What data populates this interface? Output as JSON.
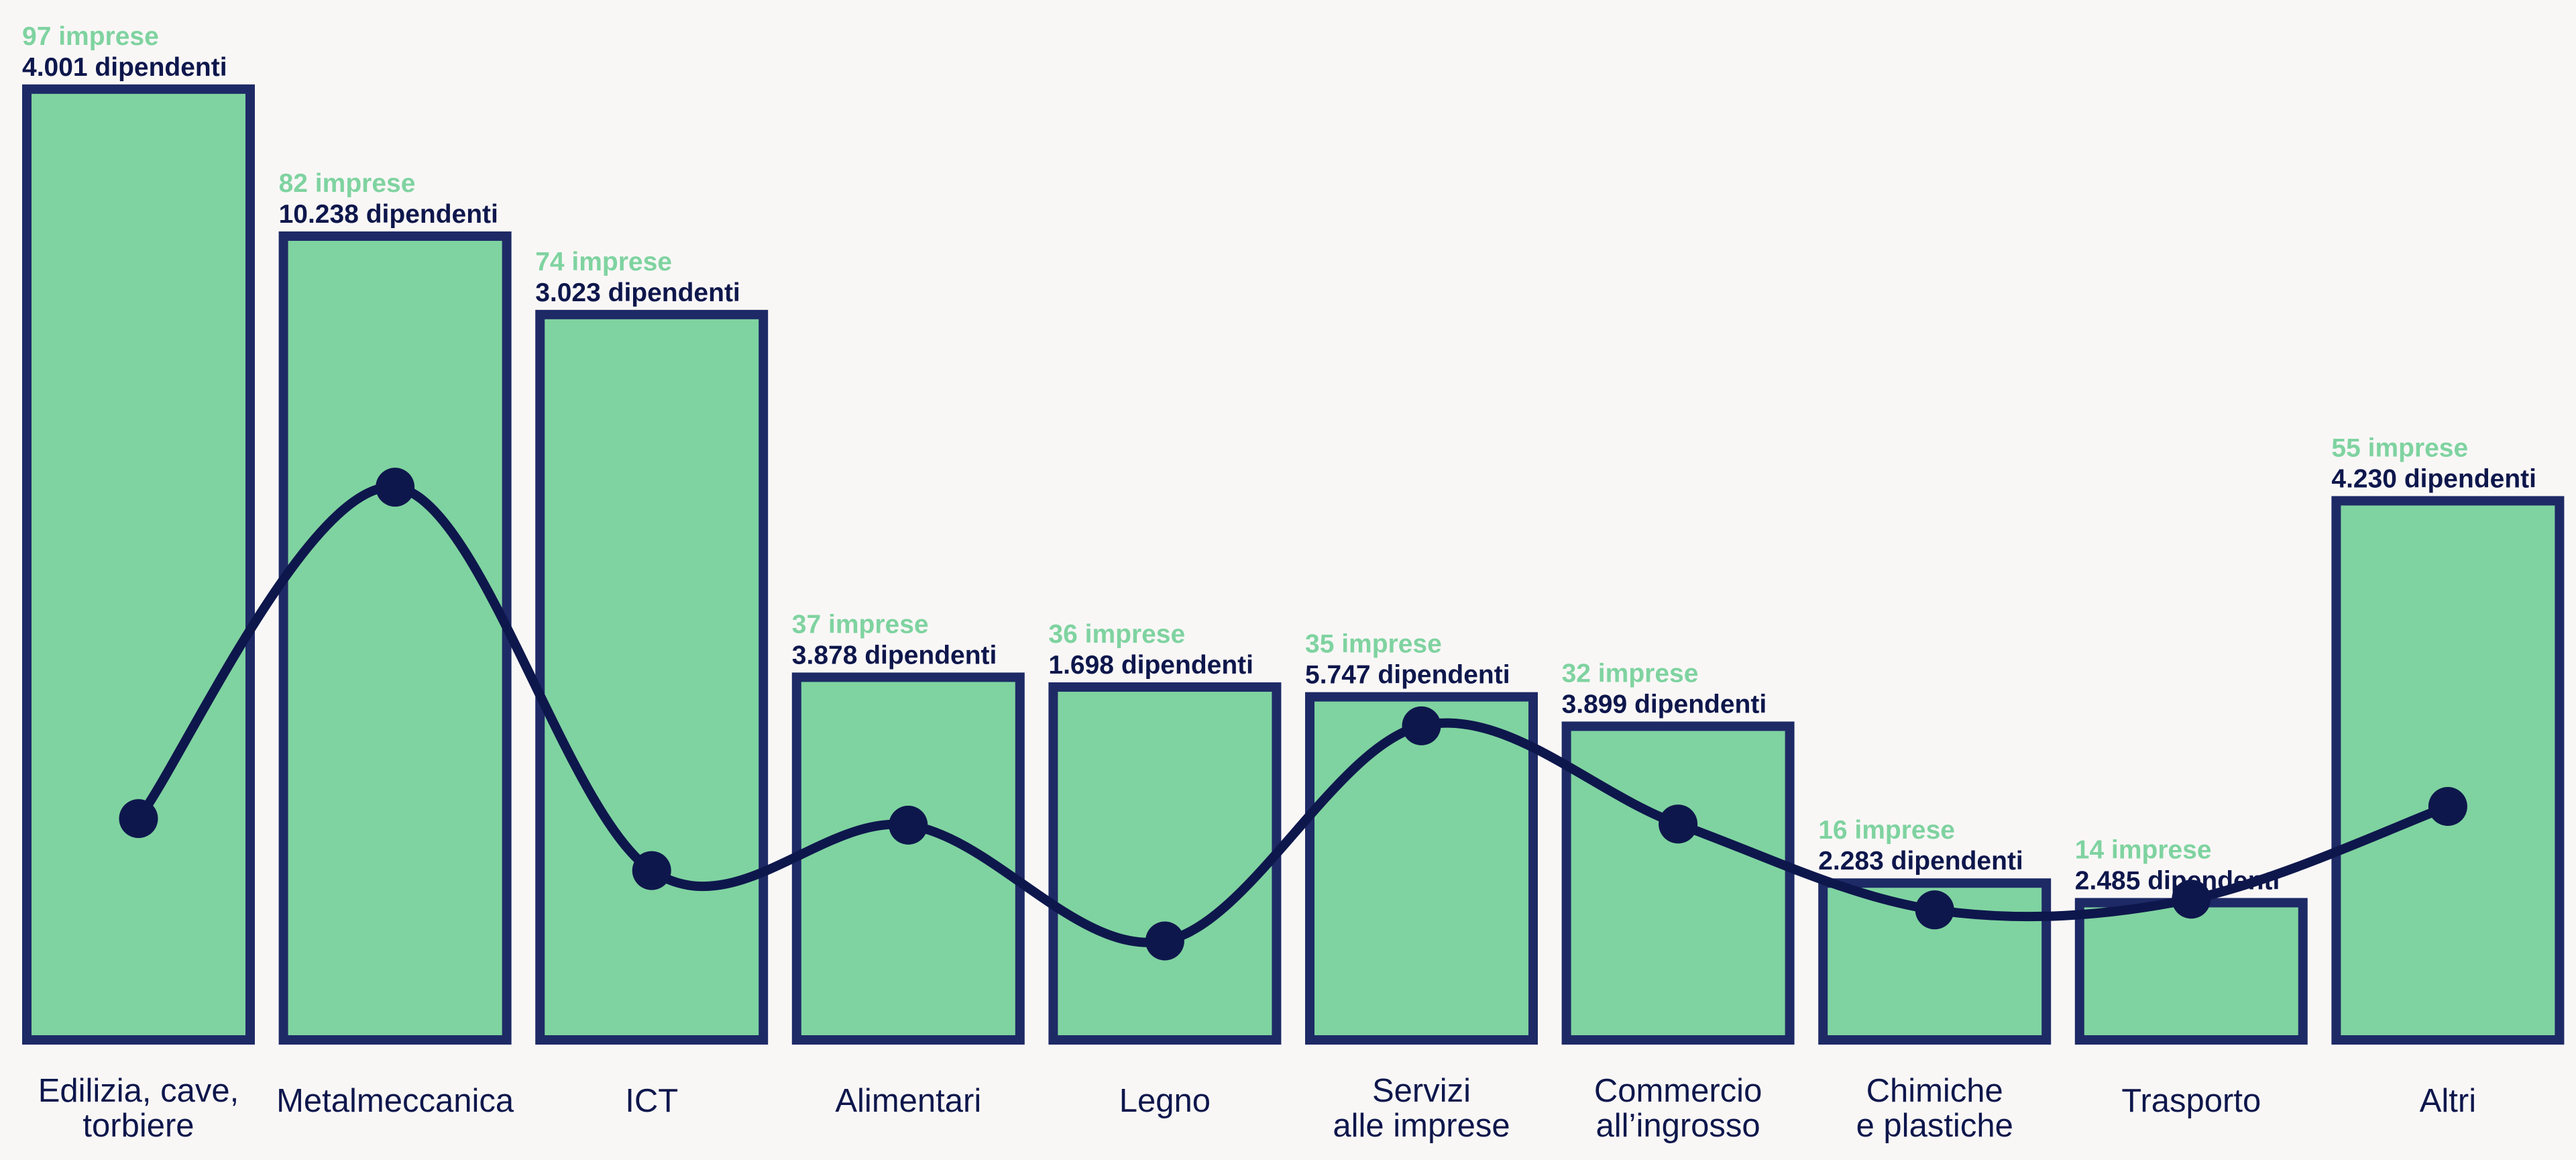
{
  "chart_data": {
    "type": "bar",
    "categories": [
      [
        "Edilizia, cave,",
        "torbiere"
      ],
      [
        "Metalmeccanica"
      ],
      [
        "ICT"
      ],
      [
        "Alimentari"
      ],
      [
        "Legno"
      ],
      [
        "Servizi",
        "alle imprese"
      ],
      [
        "Commercio",
        "all’ingrosso"
      ],
      [
        "Chimiche",
        "e plastiche"
      ],
      [
        "Trasporto"
      ],
      [
        "Altri"
      ]
    ],
    "series": [
      {
        "values": [
          97,
          82,
          74,
          37,
          36,
          35,
          32,
          16,
          14,
          55
        ],
        "labels": [
          "97 imprese",
          "82 imprese",
          "74 imprese",
          "37 imprese",
          "36 imprese",
          "35 imprese",
          "32 imprese",
          "16 imprese",
          "14 imprese",
          "55 imprese"
        ]
      },
      {
        "values": [
          4001,
          10238,
          3023,
          3878,
          1698,
          5747,
          3899,
          2283,
          2485,
          4230
        ],
        "labels": [
          "4.001 dipendenti",
          "10.238 dipendenti",
          "3.023 dipendenti",
          "3.878 dipendenti",
          "1.698 dipendenti",
          "5.747 dipendenti",
          "3.899 dipendenti",
          "2.283 dipendenti",
          "2.485 dipendenti",
          "4.230 dipendenti"
        ]
      }
    ],
    "colors": {
      "bar_fill": "#7fd3a0",
      "bar_stroke": "#1e2a66",
      "line": "#0e174c",
      "background": "#f9f7f6"
    },
    "grid": false,
    "legend": "none"
  }
}
